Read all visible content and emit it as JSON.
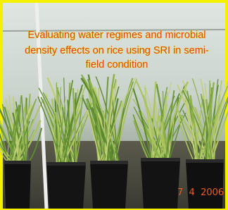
{
  "overlay": {
    "title_lines": [
      "Evaluating water regimes and microbial",
      "density effects  on rice using SRI  in semi-",
      "field condition"
    ],
    "date_stamp": "7  4  2006"
  }
}
